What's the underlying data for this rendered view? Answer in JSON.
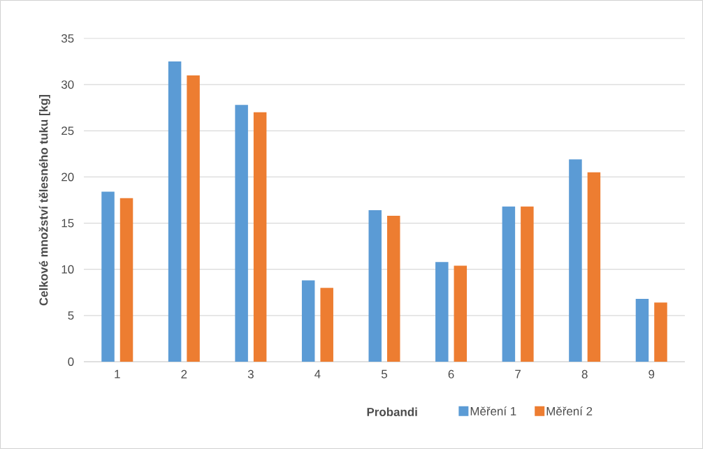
{
  "chart_data": {
    "type": "bar",
    "xlabel": "Probandi",
    "ylabel": "Celkové množství tělesného tuku [kg]",
    "categories": [
      "1",
      "2",
      "3",
      "4",
      "5",
      "6",
      "7",
      "8",
      "9"
    ],
    "series": [
      {
        "name": "Měření 1",
        "color": "#5b9bd5",
        "values": [
          18.4,
          32.5,
          27.8,
          8.8,
          16.4,
          10.8,
          16.8,
          21.9,
          6.8
        ]
      },
      {
        "name": "Měření 2",
        "color": "#ed7d31",
        "values": [
          17.7,
          31.0,
          27.0,
          8.0,
          15.8,
          10.4,
          16.8,
          20.5,
          6.4
        ]
      }
    ],
    "ylim": [
      0,
      35
    ],
    "yticks": [
      0,
      5,
      10,
      15,
      20,
      25,
      30,
      35
    ],
    "grid": "y",
    "legend": "bottom"
  }
}
